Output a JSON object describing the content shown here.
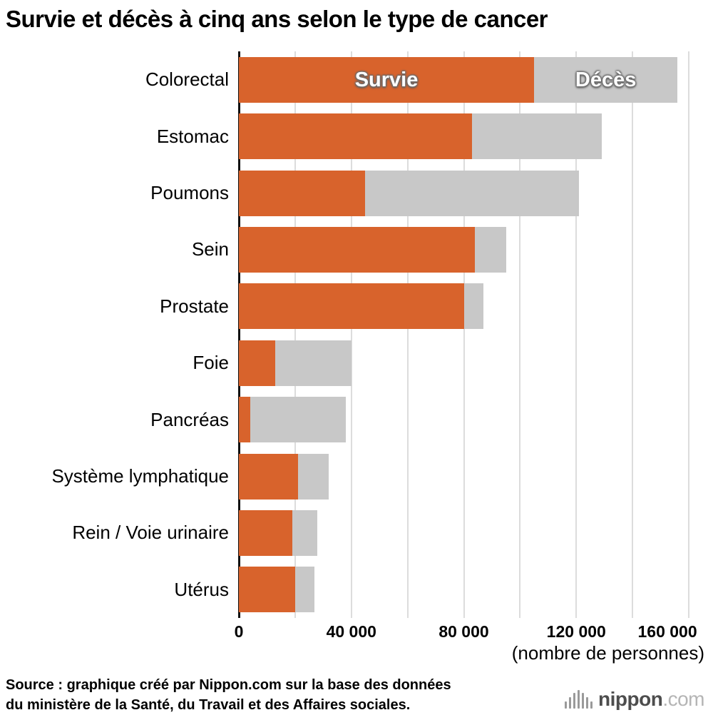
{
  "title": "Survie et décès à cinq ans selon le type de cancer",
  "chart_data": {
    "type": "bar",
    "orientation": "horizontal",
    "stacked": true,
    "title": "Survie et décès à cinq ans selon le type de cancer",
    "categories": [
      "Colorectal",
      "Estomac",
      "Poumons",
      "Sein",
      "Prostate",
      "Foie",
      "Pancréas",
      "Système lymphatique",
      "Rein / Voie urinaire",
      "Utérus"
    ],
    "series": [
      {
        "name": "Survie",
        "color": "#d8632c",
        "values": [
          105000,
          83000,
          45000,
          84000,
          80000,
          13000,
          4000,
          21000,
          19000,
          20000
        ]
      },
      {
        "name": "Décès",
        "color": "#c8c8c8",
        "values": [
          51000,
          46000,
          76000,
          11000,
          7000,
          27000,
          34000,
          11000,
          9000,
          7000
        ]
      }
    ],
    "xlim": [
      0,
      160000
    ],
    "grid_step": 20000,
    "xticks": [
      {
        "value": 0,
        "label": "0"
      },
      {
        "value": 40000,
        "label": "40 000"
      },
      {
        "value": 80000,
        "label": "80 000"
      },
      {
        "value": 120000,
        "label": "120 000"
      },
      {
        "value": 160000,
        "label": "160 000"
      }
    ],
    "axis_unit": "(nombre de personnes)",
    "legend_position": "inline-on-first-bar",
    "grid": true
  },
  "source": {
    "line1": "Source : graphique créé par Nippon.com sur la base des données",
    "line2": "du ministère de la Santé, du Travail et des Affaires sociales."
  },
  "logo": {
    "name": "nippon",
    "tld": ".com"
  }
}
